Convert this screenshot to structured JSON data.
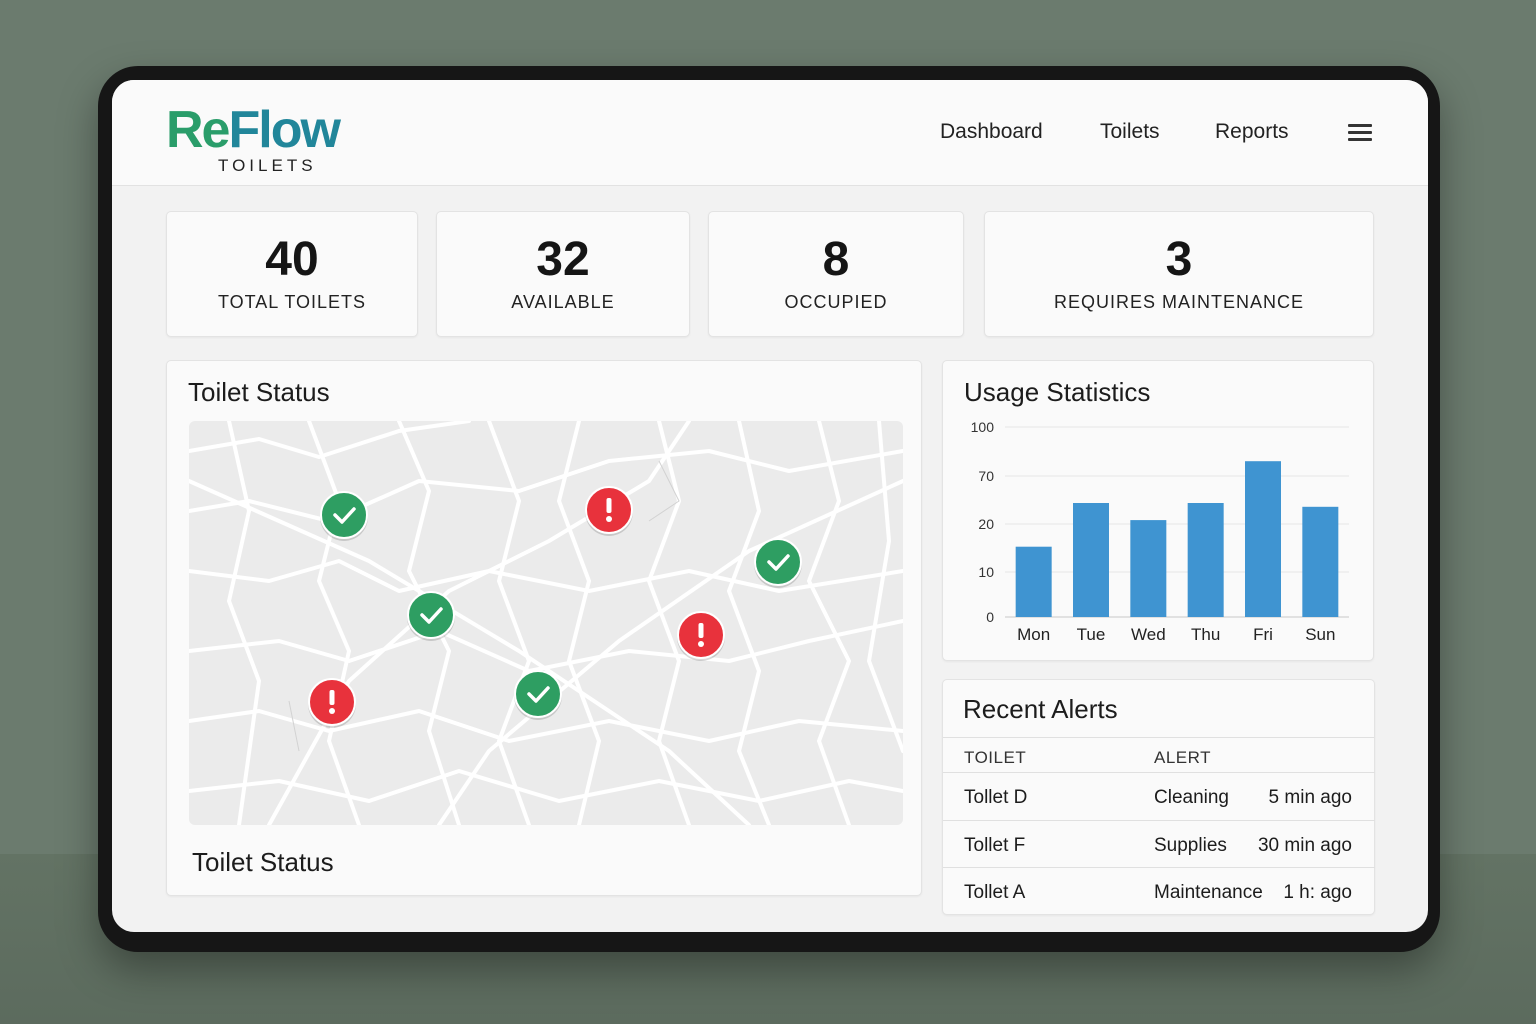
{
  "brand": {
    "word_part1": "Re",
    "word_part2": "Flow",
    "subtitle": "TOILETS"
  },
  "nav": {
    "items": [
      "Dashboard",
      "Toilets",
      "Reports"
    ]
  },
  "stats": [
    {
      "value": "40",
      "label": "TOTAL TOILETS"
    },
    {
      "value": "32",
      "label": "AVAILABLE"
    },
    {
      "value": "8",
      "label": "OCCUPIED"
    },
    {
      "value": "3",
      "label": "REQUIRES MAINTENANCE"
    }
  ],
  "status_panel": {
    "title": "Toilet Status",
    "caption": "Toilet Status"
  },
  "map_pins": [
    {
      "status": "ok",
      "icon": "check-icon",
      "color": "#2e9e62"
    },
    {
      "status": "alert",
      "icon": "exclamation-icon",
      "color": "#e8323c"
    },
    {
      "status": "ok",
      "icon": "check-icon",
      "color": "#2e9e62"
    },
    {
      "status": "ok",
      "icon": "check-icon",
      "color": "#2e9e62"
    },
    {
      "status": "alert",
      "icon": "exclamation-icon",
      "color": "#e8323c"
    },
    {
      "status": "alert",
      "icon": "exclamation-icon",
      "color": "#e8323c"
    },
    {
      "status": "ok",
      "icon": "check-icon",
      "color": "#2e9e62"
    }
  ],
  "chart_data": {
    "type": "bar",
    "title": "Usage Statistics",
    "categories": [
      "Mon",
      "Tue",
      "Wed",
      "Thu",
      "Fri",
      "Sun"
    ],
    "y_ticks": [
      "100",
      "70",
      "20",
      "10",
      "0"
    ],
    "values": [
      37,
      60,
      51,
      60,
      82,
      58
    ],
    "ylim": [
      0,
      100
    ],
    "grid": true,
    "color": "#3f94d1"
  },
  "alerts": {
    "title": "Recent Alerts",
    "headers": [
      "TOILET",
      "ALERT"
    ],
    "rows": [
      {
        "toilet": "Tollet D",
        "alert": "Cleaning",
        "time": "5 min ago"
      },
      {
        "toilet": "Tollet F",
        "alert": "Supplies",
        "time": "30 min ago"
      },
      {
        "toilet": "Tollet A",
        "alert": "Maintenance",
        "time": "1 h: ago"
      }
    ]
  }
}
